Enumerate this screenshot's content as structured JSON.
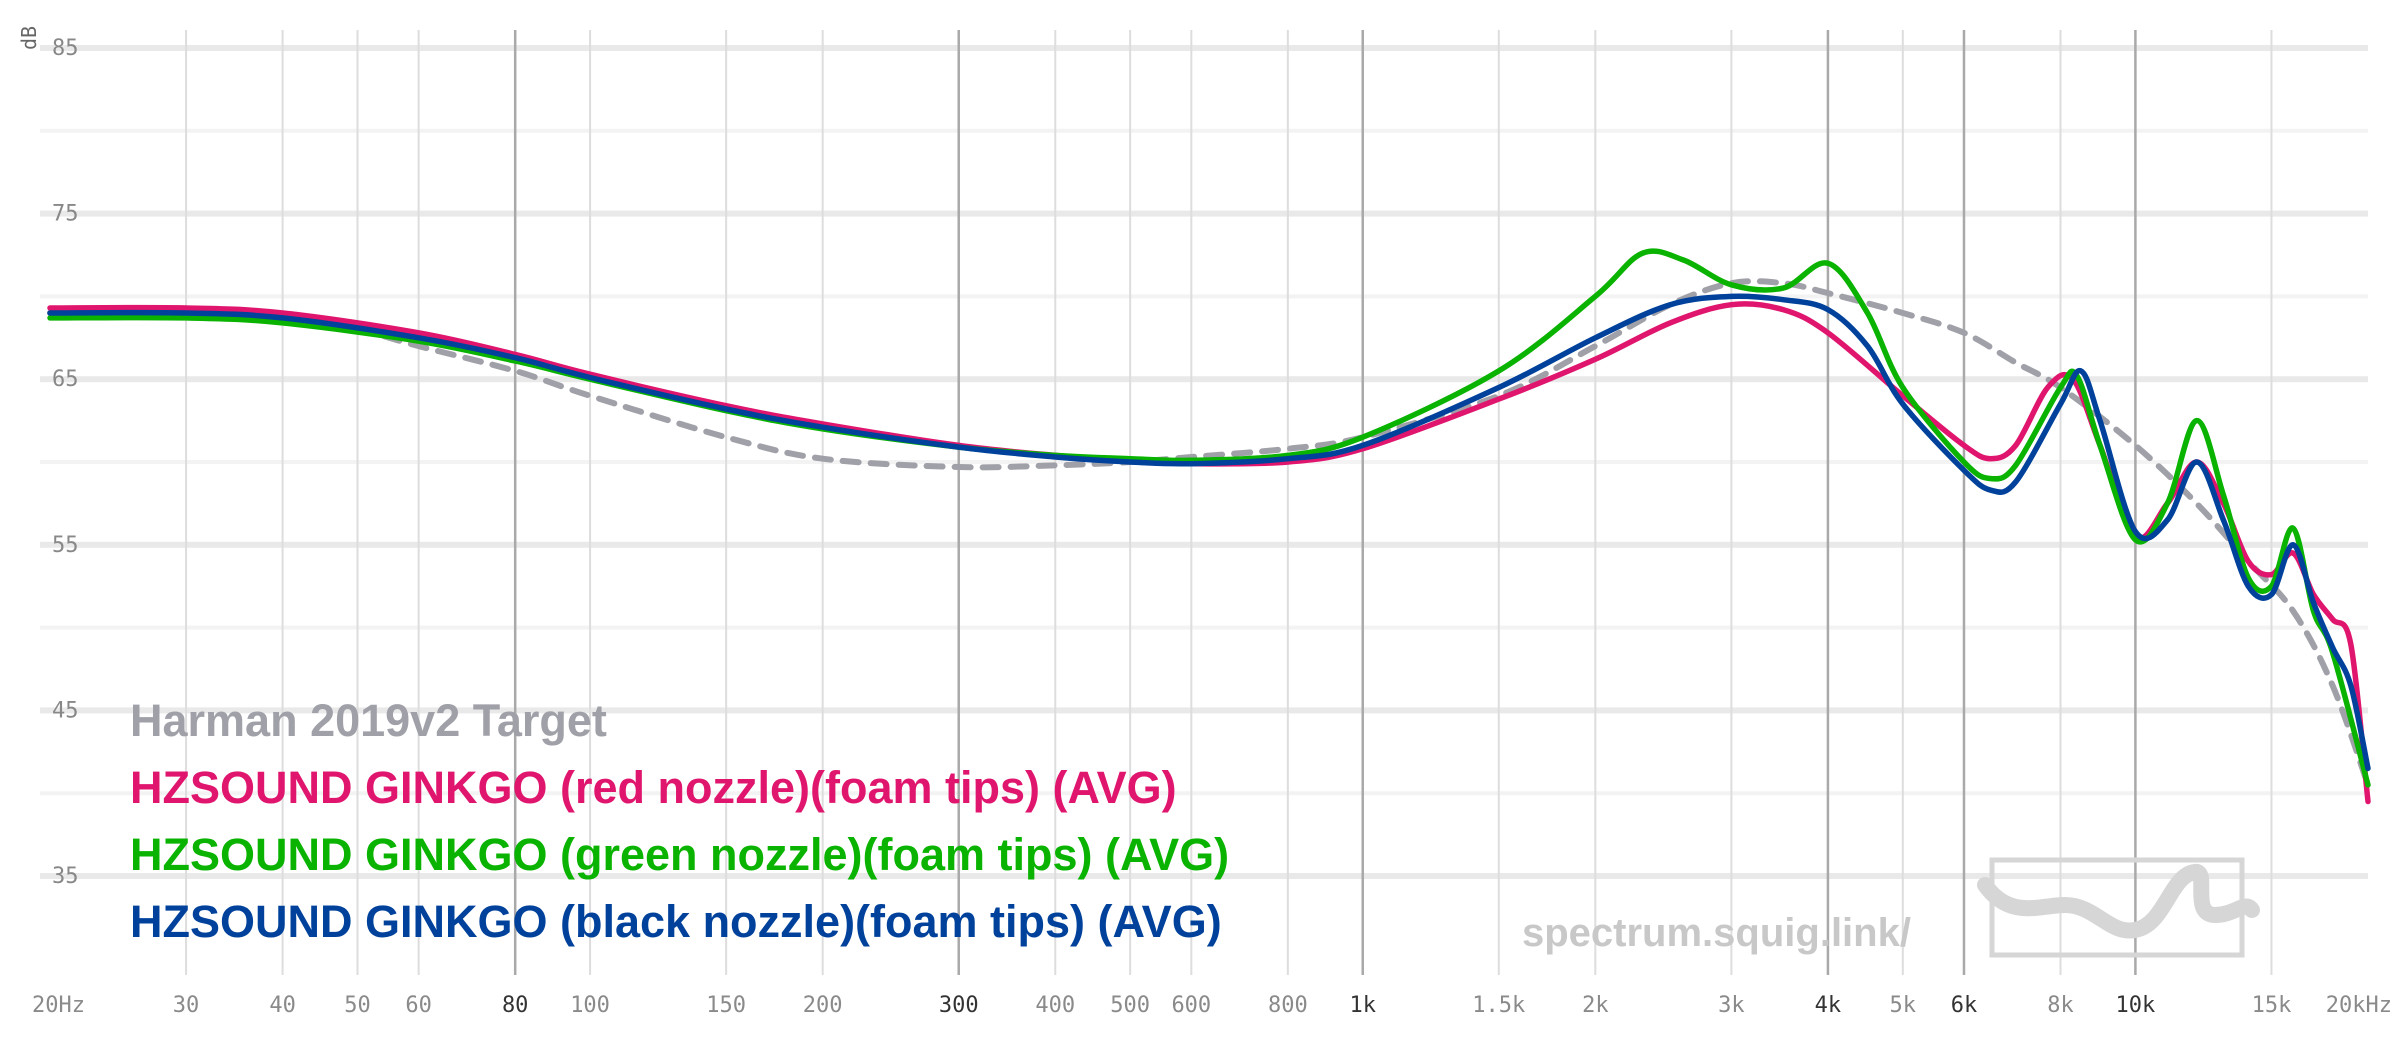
{
  "chart_data": {
    "type": "line",
    "xscale": "log",
    "xlim": [
      20,
      20000
    ],
    "ylim": [
      30,
      87
    ],
    "yunit": "dB",
    "grid": true,
    "legend_placement": "bottom-left",
    "watermark": "spectrum.squig.link/",
    "y_ticks": [
      {
        "value": 85,
        "label": "85"
      },
      {
        "value": 75,
        "label": "75"
      },
      {
        "value": 65,
        "label": "65"
      },
      {
        "value": 55,
        "label": "55"
      },
      {
        "value": 45,
        "label": "45"
      },
      {
        "value": 35,
        "label": "35"
      }
    ],
    "x_ticks": [
      {
        "value": 20,
        "label": "20Hz",
        "major": false
      },
      {
        "value": 30,
        "label": "30",
        "major": false
      },
      {
        "value": 40,
        "label": "40",
        "major": false
      },
      {
        "value": 50,
        "label": "50",
        "major": false
      },
      {
        "value": 60,
        "label": "60",
        "major": false
      },
      {
        "value": 80,
        "label": "80",
        "major": true
      },
      {
        "value": 100,
        "label": "100",
        "major": false
      },
      {
        "value": 150,
        "label": "150",
        "major": false
      },
      {
        "value": 200,
        "label": "200",
        "major": false
      },
      {
        "value": 300,
        "label": "300",
        "major": true
      },
      {
        "value": 400,
        "label": "400",
        "major": false
      },
      {
        "value": 500,
        "label": "500",
        "major": false
      },
      {
        "value": 600,
        "label": "600",
        "major": false
      },
      {
        "value": 800,
        "label": "800",
        "major": false
      },
      {
        "value": 1000,
        "label": "1k",
        "major": true
      },
      {
        "value": 1500,
        "label": "1.5k",
        "major": false
      },
      {
        "value": 2000,
        "label": "2k",
        "major": false
      },
      {
        "value": 3000,
        "label": "3k",
        "major": false
      },
      {
        "value": 4000,
        "label": "4k",
        "major": true
      },
      {
        "value": 5000,
        "label": "5k",
        "major": false
      },
      {
        "value": 6000,
        "label": "6k",
        "major": true
      },
      {
        "value": 8000,
        "label": "8k",
        "major": false
      },
      {
        "value": 10000,
        "label": "10k",
        "major": true
      },
      {
        "value": 15000,
        "label": "15k",
        "major": false
      },
      {
        "value": 20000,
        "label": "20kHz",
        "major": false
      }
    ],
    "series": [
      {
        "name": "Harman 2019v2 Target",
        "color": "#a0a0a8",
        "dashed": true,
        "points": [
          [
            20,
            69.0
          ],
          [
            30,
            69.0
          ],
          [
            40,
            68.7
          ],
          [
            50,
            68.0
          ],
          [
            60,
            67.0
          ],
          [
            80,
            65.5
          ],
          [
            100,
            64.0
          ],
          [
            150,
            61.5
          ],
          [
            200,
            60.2
          ],
          [
            300,
            59.7
          ],
          [
            400,
            59.8
          ],
          [
            500,
            60.0
          ],
          [
            600,
            60.3
          ],
          [
            800,
            60.8
          ],
          [
            1000,
            61.5
          ],
          [
            1500,
            64.0
          ],
          [
            2000,
            67.0
          ],
          [
            2500,
            69.5
          ],
          [
            3000,
            70.8
          ],
          [
            3500,
            70.8
          ],
          [
            4000,
            70.2
          ],
          [
            5000,
            69.0
          ],
          [
            6000,
            67.8
          ],
          [
            7000,
            66.0
          ],
          [
            8000,
            64.5
          ],
          [
            10000,
            61.0
          ],
          [
            12000,
            57.5
          ],
          [
            14000,
            54.0
          ],
          [
            16000,
            51.0
          ],
          [
            18000,
            46.5
          ],
          [
            20000,
            40.5
          ]
        ]
      },
      {
        "name": "HZSOUND GINKGO (red nozzle)(foam tips) (AVG)",
        "color": "#e0166e",
        "dashed": false,
        "points": [
          [
            20,
            69.3
          ],
          [
            30,
            69.3
          ],
          [
            40,
            69.0
          ],
          [
            60,
            67.8
          ],
          [
            80,
            66.5
          ],
          [
            100,
            65.3
          ],
          [
            150,
            63.4
          ],
          [
            200,
            62.3
          ],
          [
            300,
            61.0
          ],
          [
            400,
            60.4
          ],
          [
            500,
            60.1
          ],
          [
            600,
            59.9
          ],
          [
            800,
            60.0
          ],
          [
            1000,
            60.8
          ],
          [
            1500,
            63.8
          ],
          [
            2000,
            66.2
          ],
          [
            2500,
            68.4
          ],
          [
            3000,
            69.5
          ],
          [
            3500,
            69.2
          ],
          [
            4000,
            67.8
          ],
          [
            5000,
            64.0
          ],
          [
            6000,
            61.0
          ],
          [
            6500,
            60.2
          ],
          [
            7000,
            61.0
          ],
          [
            7700,
            64.5
          ],
          [
            8300,
            65.0
          ],
          [
            9000,
            61.0
          ],
          [
            10000,
            55.5
          ],
          [
            11000,
            57.5
          ],
          [
            12000,
            60.0
          ],
          [
            13000,
            57.5
          ],
          [
            14000,
            54.0
          ],
          [
            15000,
            53.2
          ],
          [
            16000,
            54.5
          ],
          [
            17000,
            52.0
          ],
          [
            18000,
            50.5
          ],
          [
            19000,
            49.0
          ],
          [
            20000,
            39.5
          ]
        ]
      },
      {
        "name": "HZSOUND GINKGO (green nozzle)(foam tips) (AVG)",
        "color": "#09b300",
        "dashed": false,
        "points": [
          [
            20,
            68.7
          ],
          [
            30,
            68.7
          ],
          [
            40,
            68.4
          ],
          [
            60,
            67.3
          ],
          [
            80,
            66.1
          ],
          [
            100,
            65.0
          ],
          [
            150,
            63.1
          ],
          [
            200,
            62.0
          ],
          [
            300,
            60.9
          ],
          [
            400,
            60.4
          ],
          [
            500,
            60.2
          ],
          [
            600,
            60.1
          ],
          [
            800,
            60.4
          ],
          [
            1000,
            61.5
          ],
          [
            1500,
            65.5
          ],
          [
            2000,
            70.0
          ],
          [
            2300,
            72.6
          ],
          [
            2600,
            72.2
          ],
          [
            3000,
            70.7
          ],
          [
            3500,
            70.5
          ],
          [
            4000,
            72.0
          ],
          [
            4500,
            69.0
          ],
          [
            5000,
            64.5
          ],
          [
            6000,
            60.0
          ],
          [
            6500,
            59.0
          ],
          [
            7000,
            59.8
          ],
          [
            8000,
            64.5
          ],
          [
            8400,
            65.2
          ],
          [
            9000,
            61.0
          ],
          [
            10000,
            55.3
          ],
          [
            11000,
            57.5
          ],
          [
            12000,
            62.5
          ],
          [
            13000,
            58.0
          ],
          [
            14000,
            53.0
          ],
          [
            15000,
            52.5
          ],
          [
            16000,
            56.0
          ],
          [
            17000,
            51.0
          ],
          [
            18000,
            48.5
          ],
          [
            20000,
            40.5
          ]
        ]
      },
      {
        "name": "HZSOUND GINKGO (black nozzle)(foam tips) (AVG)",
        "color": "#00429b",
        "dashed": false,
        "points": [
          [
            20,
            69.0
          ],
          [
            30,
            69.0
          ],
          [
            40,
            68.7
          ],
          [
            60,
            67.5
          ],
          [
            80,
            66.3
          ],
          [
            100,
            65.1
          ],
          [
            150,
            63.2
          ],
          [
            200,
            62.1
          ],
          [
            300,
            60.9
          ],
          [
            400,
            60.3
          ],
          [
            500,
            60.0
          ],
          [
            600,
            59.9
          ],
          [
            800,
            60.2
          ],
          [
            1000,
            61.0
          ],
          [
            1500,
            64.5
          ],
          [
            2000,
            67.5
          ],
          [
            2500,
            69.5
          ],
          [
            3000,
            70.0
          ],
          [
            3500,
            69.8
          ],
          [
            4000,
            69.2
          ],
          [
            4500,
            67.0
          ],
          [
            5000,
            63.5
          ],
          [
            6000,
            59.5
          ],
          [
            6500,
            58.3
          ],
          [
            7000,
            58.8
          ],
          [
            8000,
            63.5
          ],
          [
            8500,
            65.5
          ],
          [
            9000,
            62.5
          ],
          [
            10000,
            55.8
          ],
          [
            11000,
            56.5
          ],
          [
            12000,
            60.0
          ],
          [
            13000,
            56.5
          ],
          [
            14000,
            52.5
          ],
          [
            15000,
            52.0
          ],
          [
            16000,
            55.0
          ],
          [
            17000,
            51.5
          ],
          [
            18000,
            48.8
          ],
          [
            19000,
            46.5
          ],
          [
            20000,
            41.5
          ]
        ]
      }
    ]
  }
}
